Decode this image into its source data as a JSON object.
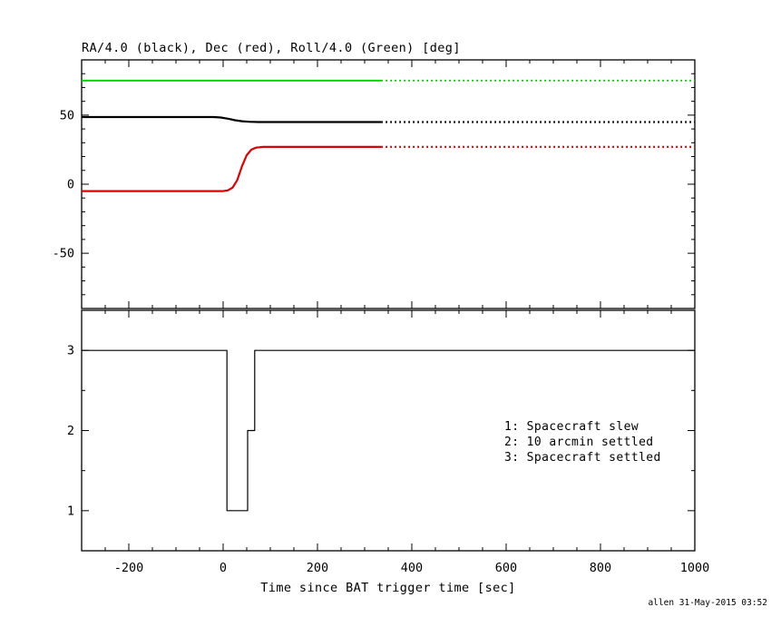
{
  "chart_data": {
    "type": "line",
    "title": "RA/4.0 (black), Dec (red), Roll/4.0 (Green) [deg]",
    "xlabel": "Time since BAT trigger time [sec]",
    "credit": "allen 31-May-2015 03:52",
    "xlim": [
      -300,
      1000
    ],
    "xticks": [
      -200,
      0,
      200,
      400,
      600,
      800,
      1000
    ],
    "x_minor_step": 50,
    "colors": {
      "ra": "#000000",
      "dec": "#dd0000",
      "roll": "#00cc00",
      "frame": "#000000"
    },
    "panels": [
      {
        "id": "attitude",
        "ylim": [
          -90,
          90
        ],
        "yticks": [
          -50,
          0,
          50
        ],
        "y_minor_step": 10,
        "series": [
          {
            "name": "ra-over-4-black",
            "color": "#000000",
            "width": 2.2,
            "dotted_after": 335,
            "points": [
              [
                -300,
                48.6
              ],
              [
                -20,
                48.6
              ],
              [
                -5,
                48.3
              ],
              [
                10,
                47.4
              ],
              [
                25,
                46.3
              ],
              [
                40,
                45.6
              ],
              [
                55,
                45.2
              ],
              [
                75,
                45
              ],
              [
                1000,
                45
              ]
            ]
          },
          {
            "name": "dec-red",
            "color": "#dd0000",
            "width": 2.2,
            "dotted_after": 335,
            "points": [
              [
                -300,
                -5
              ],
              [
                0,
                -5
              ],
              [
                10,
                -4.5
              ],
              [
                20,
                -2.5
              ],
              [
                30,
                3
              ],
              [
                40,
                13
              ],
              [
                50,
                21
              ],
              [
                60,
                25
              ],
              [
                70,
                26.5
              ],
              [
                85,
                27
              ],
              [
                1000,
                27
              ]
            ]
          },
          {
            "name": "roll-over-4-green",
            "color": "#00cc00",
            "width": 1.8,
            "dotted_after": 335,
            "points": [
              [
                -300,
                75
              ],
              [
                1000,
                75
              ]
            ]
          }
        ]
      },
      {
        "id": "settling",
        "ylim": [
          0.5,
          3.5
        ],
        "yticks": [
          1,
          2,
          3
        ],
        "y_minor_step": 0.5,
        "series": [
          {
            "name": "settling-state",
            "color": "#000000",
            "width": 1.2,
            "points": [
              [
                -300,
                3
              ],
              [
                8,
                3
              ],
              [
                8,
                1
              ],
              [
                52,
                1
              ],
              [
                52,
                2
              ],
              [
                67,
                2
              ],
              [
                67,
                3
              ],
              [
                1000,
                3
              ]
            ]
          }
        ],
        "legend": [
          "1: Spacecraft slew",
          "2: 10 arcmin settled",
          "3: Spacecraft settled"
        ]
      }
    ]
  }
}
